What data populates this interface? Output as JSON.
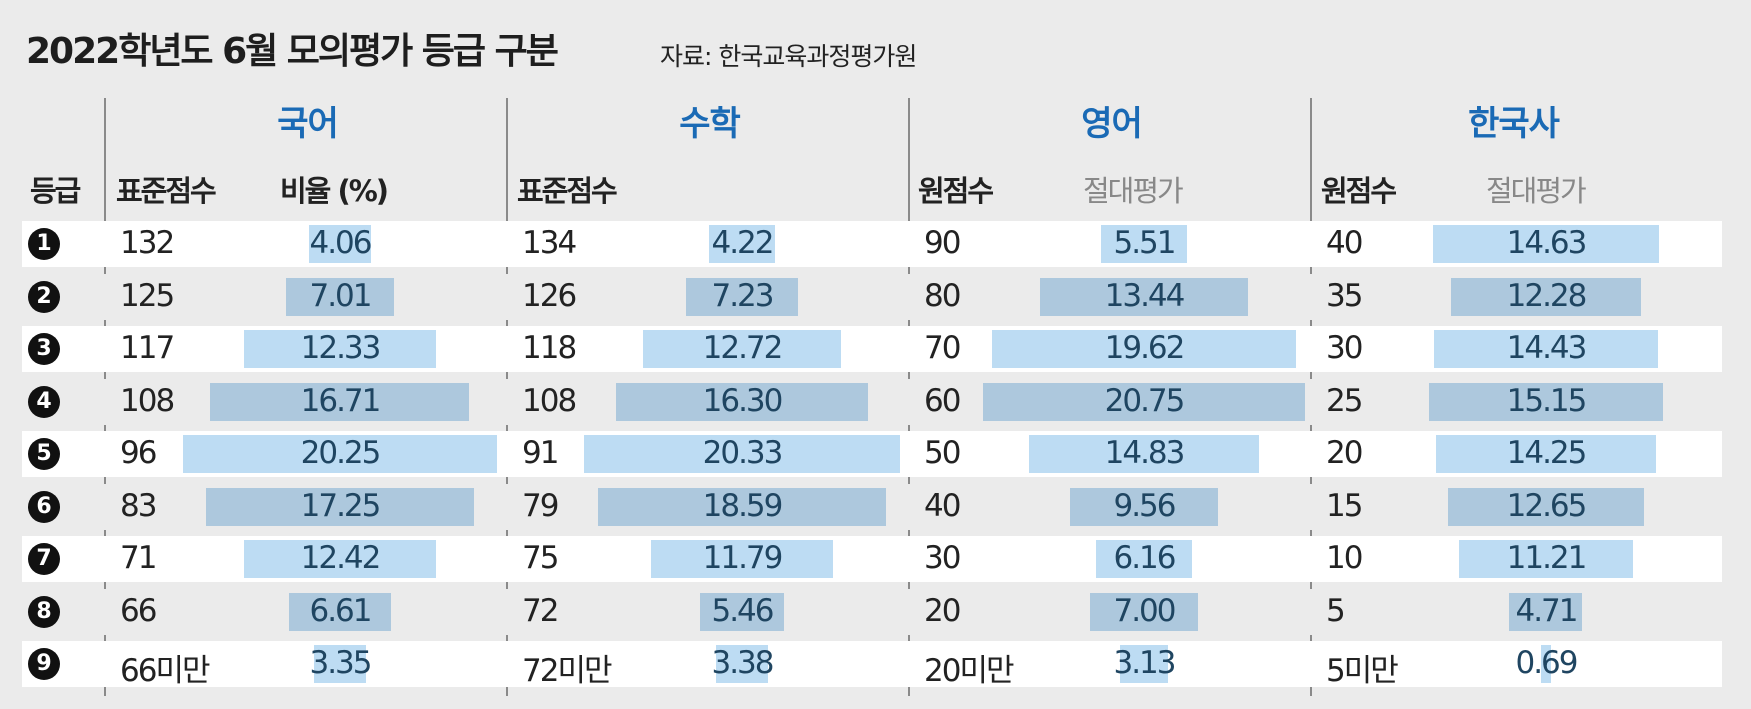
{
  "title": "2022학년도 6월 모의평가 등급 구분",
  "source": "자료: 한국교육과정평가원",
  "headers": {
    "grade": "등급",
    "korean_score": "표준점수",
    "korean_ratio": "비율 (%)",
    "math_score": "표준점수",
    "english_score": "원점수",
    "english_eval": "절대평가",
    "history_score": "원점수",
    "history_eval": "절대평가"
  },
  "chart_data": {
    "type": "table",
    "title": "2022학년도 6월 모의평가 등급 구분",
    "grades": [
      "1",
      "2",
      "3",
      "4",
      "5",
      "6",
      "7",
      "8",
      "9"
    ],
    "grade_badges": [
      "❶",
      "❷",
      "❸",
      "❹",
      "❺",
      "❻",
      "❼",
      "❽",
      "❾"
    ],
    "subjects": [
      {
        "name": "국어",
        "scores": [
          "132",
          "125",
          "117",
          "108",
          "96",
          "83",
          "71",
          "66",
          "66미만"
        ],
        "ratios": [
          4.06,
          7.01,
          12.33,
          16.71,
          20.25,
          17.25,
          12.42,
          6.61,
          3.35
        ]
      },
      {
        "name": "수학",
        "scores": [
          "134",
          "126",
          "118",
          "108",
          "91",
          "79",
          "75",
          "72",
          "72미만"
        ],
        "ratios": [
          4.22,
          7.23,
          12.72,
          16.3,
          20.33,
          18.59,
          11.79,
          5.46,
          3.38
        ]
      },
      {
        "name": "영어",
        "scores": [
          "90",
          "80",
          "70",
          "60",
          "50",
          "40",
          "30",
          "20",
          "20미만"
        ],
        "ratios": [
          5.51,
          13.44,
          19.62,
          20.75,
          14.83,
          9.56,
          6.16,
          7.0,
          3.13
        ]
      },
      {
        "name": "한국사",
        "scores": [
          "40",
          "35",
          "30",
          "25",
          "20",
          "15",
          "10",
          "5",
          "5미만"
        ],
        "ratios": [
          14.63,
          12.28,
          14.43,
          15.15,
          14.25,
          12.65,
          11.21,
          4.71,
          0.69
        ]
      }
    ],
    "colors": {
      "bar_light": "#bddcf3",
      "bar_dark": "#adc8dd",
      "subject_title": "#1a6ab5"
    }
  }
}
